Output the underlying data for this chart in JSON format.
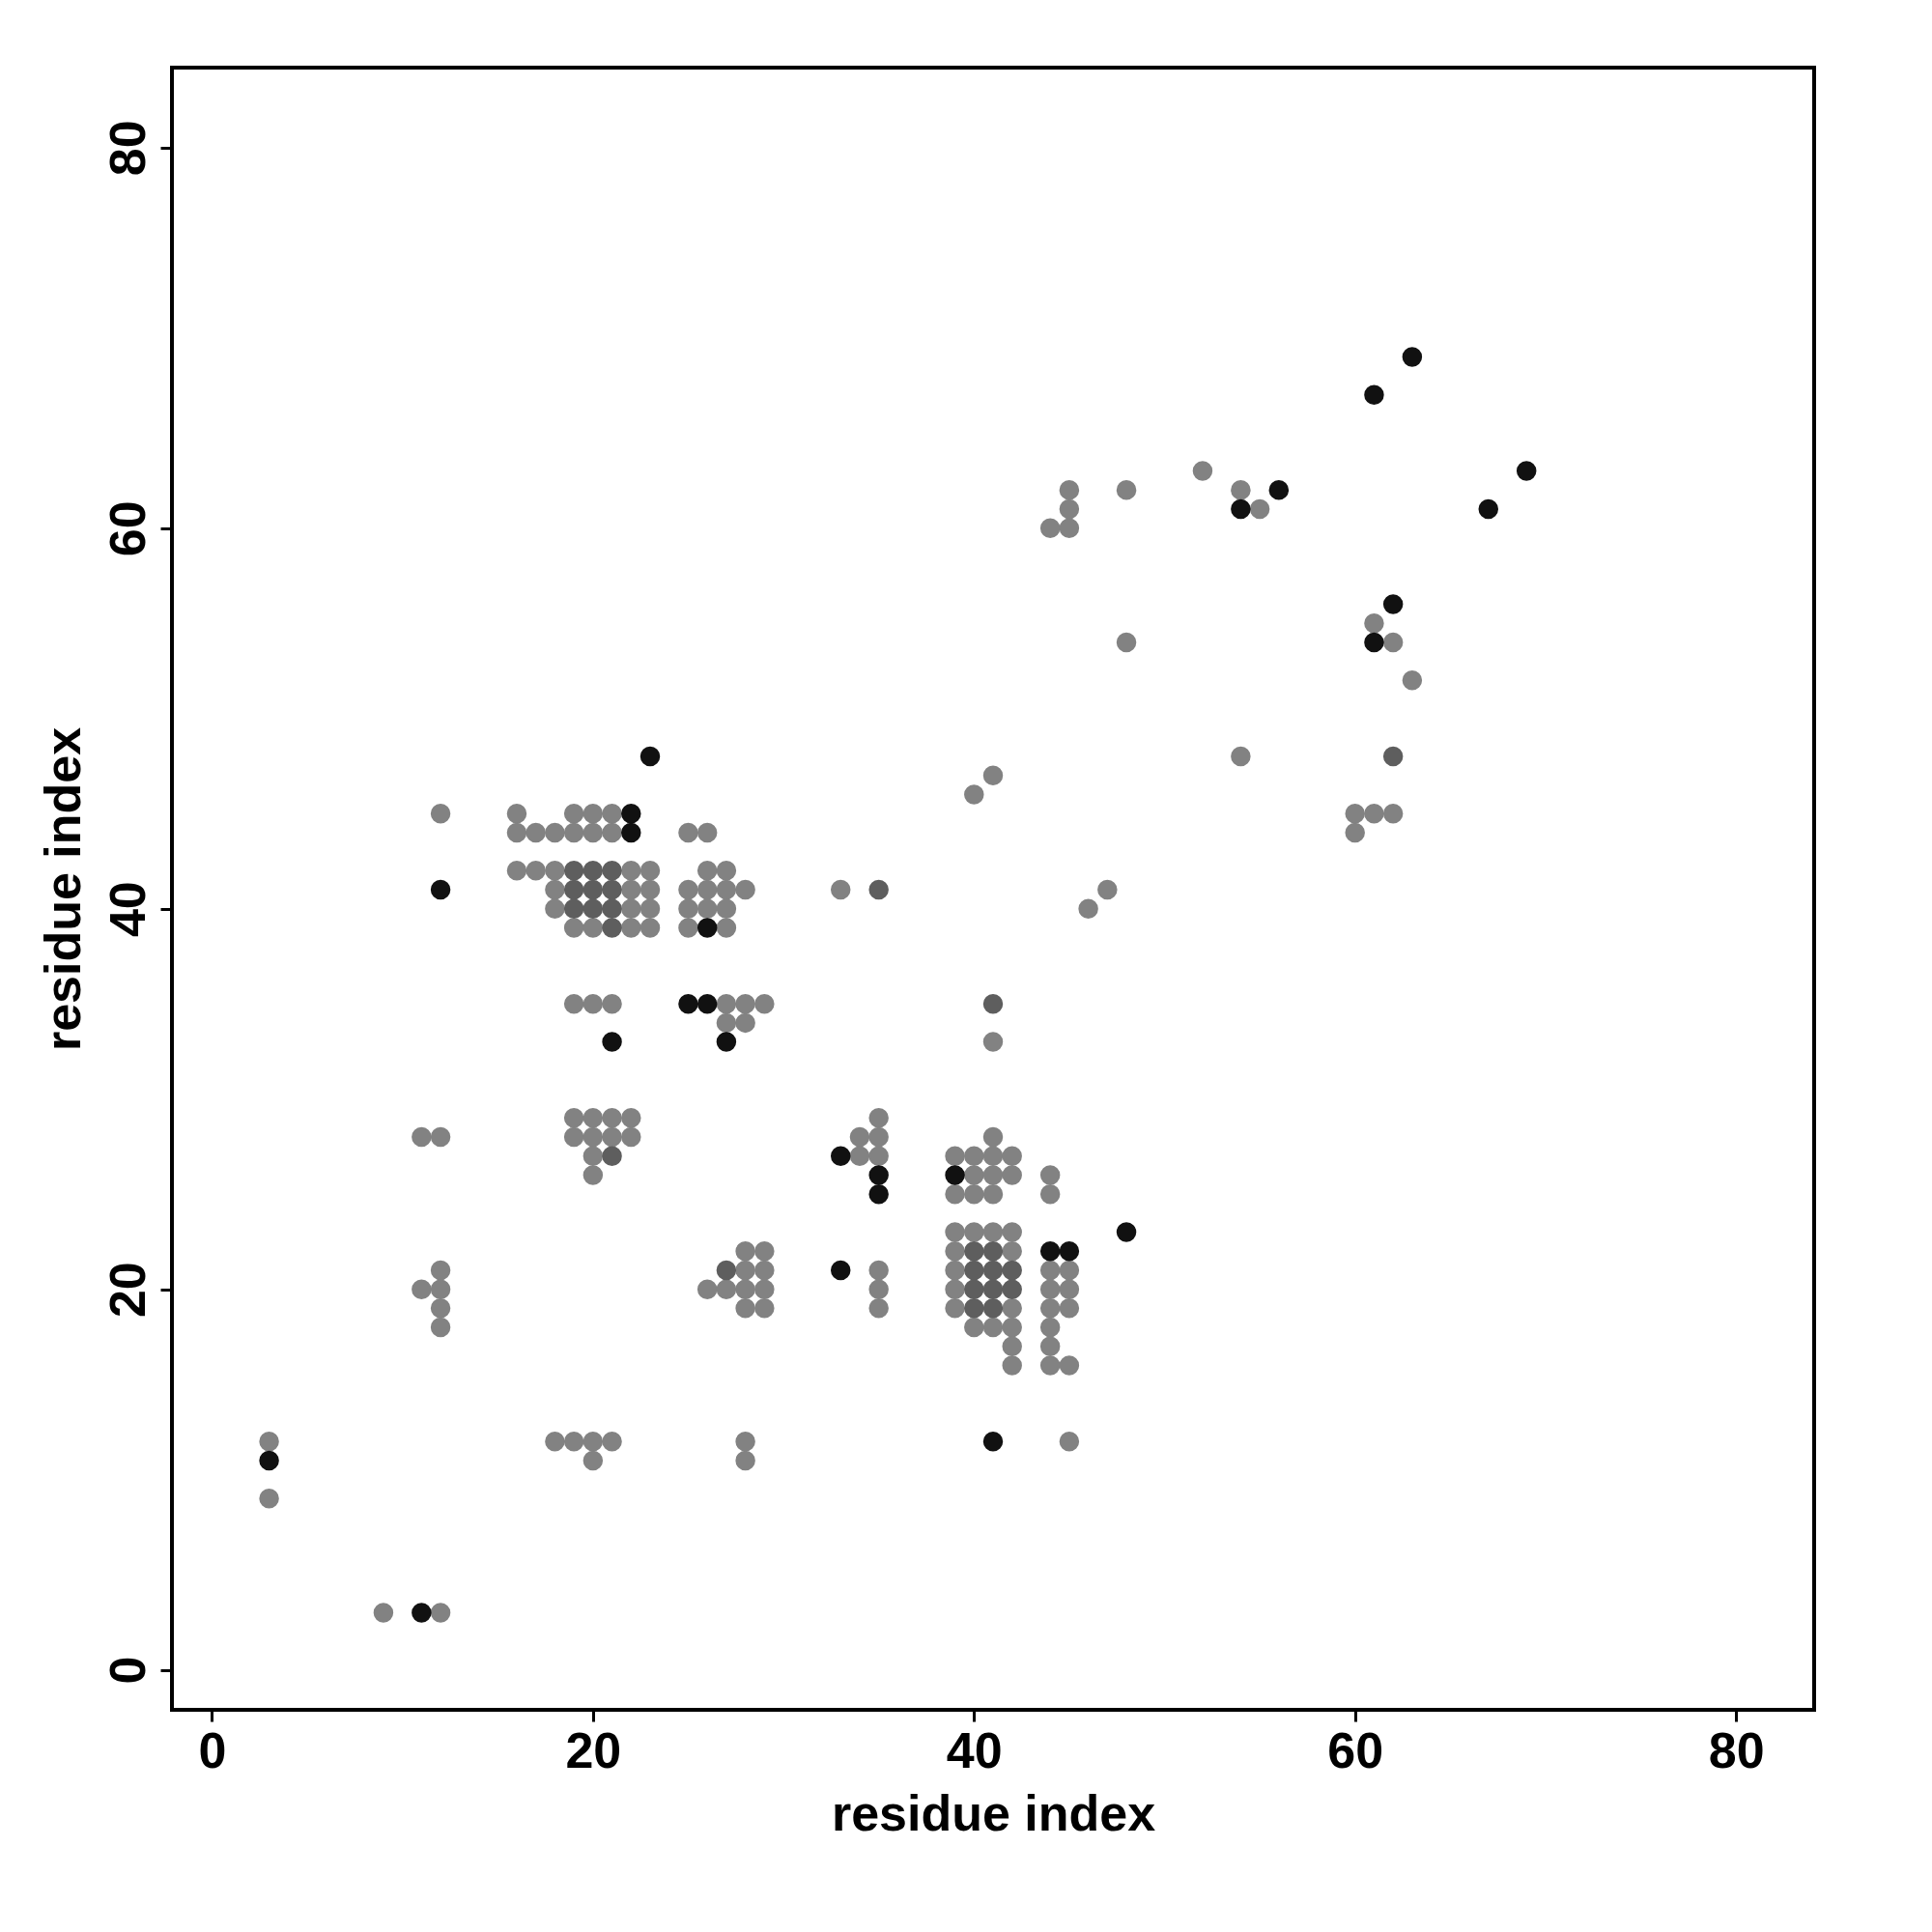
{
  "chart_data": {
    "type": "scatter",
    "xlabel": "residue index",
    "ylabel": "residue index",
    "marker": "circle",
    "xlim": [
      -2.1,
      84.1
    ],
    "ylim": [
      -2.1,
      84.2
    ],
    "xticks": [
      0,
      20,
      40,
      60,
      80
    ],
    "yticks": [
      0,
      20,
      40,
      60,
      80
    ],
    "series": [
      {
        "color": "#828282",
        "x": [
          12,
          16,
          19,
          20,
          21,
          16,
          17,
          18,
          19,
          20,
          21,
          25,
          26,
          16,
          17,
          18,
          22,
          23,
          26,
          27,
          18,
          22,
          23,
          25,
          26,
          27,
          28,
          18,
          22,
          23,
          25,
          26,
          27,
          19,
          20,
          22,
          23,
          25,
          27,
          19,
          20,
          21,
          27,
          28,
          29,
          27,
          28,
          33,
          41,
          41,
          40,
          46,
          47,
          19,
          20,
          21,
          22,
          35,
          19,
          20,
          21,
          22,
          11,
          12,
          34,
          35,
          41,
          20,
          34,
          35,
          39,
          40,
          41,
          42,
          20,
          40,
          41,
          42,
          44,
          39,
          40,
          41,
          44,
          39,
          40,
          41,
          42,
          28,
          29,
          39,
          42,
          12,
          28,
          29,
          35,
          39,
          44,
          45,
          11,
          12,
          26,
          27,
          28,
          29,
          35,
          39,
          44,
          45,
          12,
          28,
          29,
          35,
          39,
          42,
          44,
          45,
          12,
          40,
          41,
          42,
          44,
          42,
          44,
          42,
          44,
          45,
          3,
          18,
          19,
          20,
          21,
          28,
          45,
          20,
          28,
          3,
          9,
          12,
          44,
          45,
          45,
          45,
          48,
          48,
          52,
          54,
          55,
          61,
          62,
          63,
          54,
          60,
          61,
          62,
          60
        ],
        "values": [
          45,
          45,
          45,
          45,
          45,
          44,
          44,
          44,
          44,
          44,
          44,
          44,
          44,
          42,
          42,
          42,
          42,
          42,
          42,
          42,
          41,
          41,
          41,
          41,
          41,
          41,
          41,
          40,
          40,
          40,
          40,
          40,
          40,
          39,
          39,
          39,
          39,
          39,
          39,
          35,
          35,
          35,
          35,
          35,
          35,
          34,
          34,
          41,
          33,
          47,
          46,
          40,
          41,
          29,
          29,
          29,
          29,
          29,
          28,
          28,
          28,
          28,
          28,
          28,
          28,
          28,
          28,
          27,
          27,
          27,
          27,
          27,
          27,
          27,
          26,
          26,
          26,
          26,
          26,
          25,
          25,
          25,
          25,
          23,
          23,
          23,
          23,
          22,
          22,
          22,
          22,
          21,
          21,
          21,
          21,
          21,
          21,
          21,
          20,
          20,
          20,
          20,
          20,
          20,
          20,
          20,
          20,
          20,
          19,
          19,
          19,
          19,
          19,
          19,
          19,
          19,
          18,
          18,
          18,
          18,
          18,
          17,
          17,
          16,
          16,
          16,
          12,
          12,
          12,
          12,
          12,
          12,
          12,
          11,
          11,
          9,
          3,
          3,
          60,
          60,
          61,
          62,
          62,
          54,
          63,
          62,
          61,
          55,
          54,
          52,
          48,
          45,
          45,
          45,
          44
        ]
      },
      {
        "color": "#5e5e5e",
        "x": [
          19,
          20,
          21,
          19,
          20,
          21,
          19,
          20,
          21,
          21,
          21,
          27,
          35,
          41,
          40,
          41,
          40,
          41,
          42,
          40,
          41,
          42,
          40,
          41,
          62
        ],
        "values": [
          42,
          42,
          42,
          41,
          41,
          41,
          40,
          40,
          40,
          39,
          27,
          21,
          41,
          35,
          22,
          22,
          21,
          21,
          21,
          20,
          20,
          20,
          19,
          19,
          48
        ]
      },
      {
        "color": "#111111",
        "x": [
          22,
          22,
          12,
          26,
          25,
          26,
          21,
          27,
          23,
          33,
          35,
          35,
          39,
          33,
          44,
          45,
          48,
          41,
          3,
          11,
          54,
          56,
          61,
          63,
          69,
          67,
          62,
          61
        ],
        "values": [
          45,
          44,
          41,
          39,
          35,
          35,
          33,
          33,
          48,
          27,
          26,
          25,
          26,
          21,
          22,
          22,
          23,
          12,
          11,
          3,
          61,
          62,
          67,
          69,
          63,
          61,
          56,
          54
        ]
      }
    ]
  }
}
